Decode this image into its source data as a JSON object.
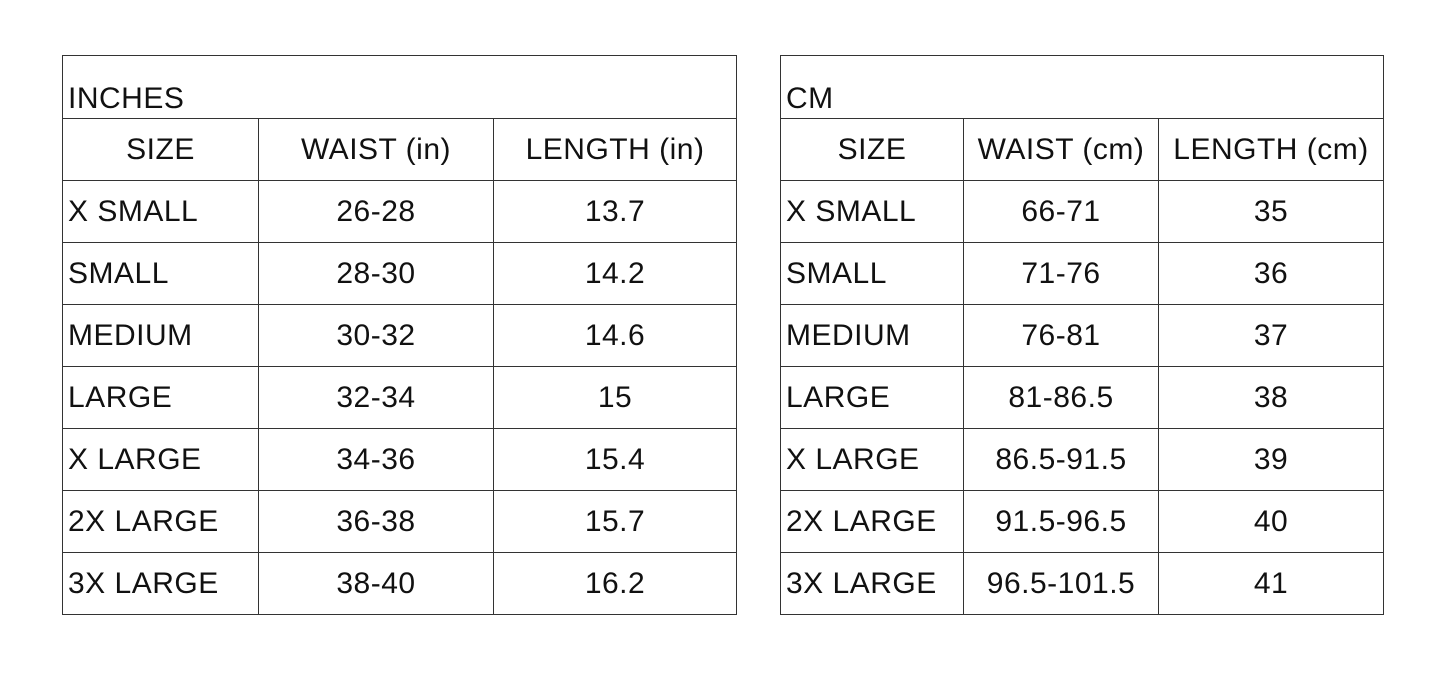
{
  "inches": {
    "title": "INCHES",
    "headers": [
      "SIZE",
      "WAIST (in)",
      "LENGTH (in)"
    ],
    "rows": [
      [
        "X SMALL",
        "26-28",
        "13.7"
      ],
      [
        "SMALL",
        "28-30",
        "14.2"
      ],
      [
        "MEDIUM",
        "30-32",
        "14.6"
      ],
      [
        "LARGE",
        "32-34",
        "15"
      ],
      [
        "X LARGE",
        "34-36",
        "15.4"
      ],
      [
        "2X LARGE",
        "36-38",
        "15.7"
      ],
      [
        "3X LARGE",
        "38-40",
        "16.2"
      ]
    ]
  },
  "cm": {
    "title": "CM",
    "headers": [
      "SIZE",
      "WAIST (cm)",
      "LENGTH (cm)"
    ],
    "rows": [
      [
        "X SMALL",
        "66-71",
        "35"
      ],
      [
        "SMALL",
        "71-76",
        "36"
      ],
      [
        "MEDIUM",
        "76-81",
        "37"
      ],
      [
        "LARGE",
        "81-86.5",
        "38"
      ],
      [
        "X LARGE",
        "86.5-91.5",
        "39"
      ],
      [
        "2X LARGE",
        "91.5-96.5",
        "40"
      ],
      [
        "3X LARGE",
        "96.5-101.5",
        "41"
      ]
    ]
  }
}
